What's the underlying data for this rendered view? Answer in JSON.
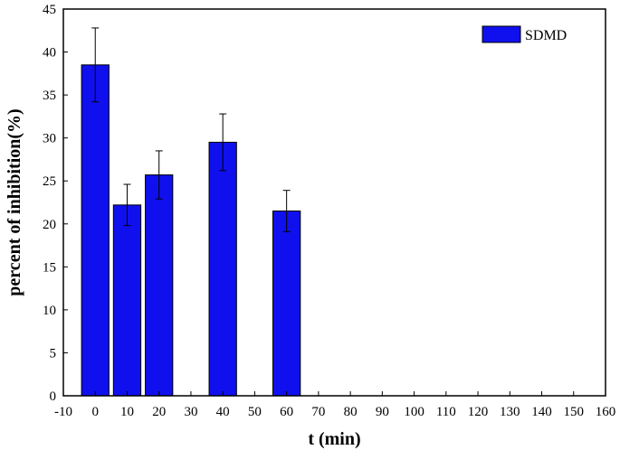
{
  "chart_data": {
    "type": "bar",
    "xlabel": "t (min)",
    "ylabel": "percent of inhibition(%)",
    "xlim": [
      -10,
      160
    ],
    "ylim": [
      0,
      45
    ],
    "xticks": [
      "-10",
      "0",
      "10",
      "20",
      "30",
      "40",
      "50",
      "60",
      "70",
      "80",
      "90",
      "100",
      "110",
      "120",
      "130",
      "140",
      "150",
      "160"
    ],
    "yticks": [
      "0",
      "5",
      "10",
      "15",
      "20",
      "25",
      "30",
      "35",
      "40",
      "45"
    ],
    "x": [
      0,
      10,
      20,
      40,
      60
    ],
    "series": [
      {
        "name": "SDMD",
        "color": "#1010ee",
        "values": [
          38.5,
          22.2,
          25.7,
          29.5,
          21.5
        ],
        "error": [
          4.3,
          2.4,
          2.8,
          3.3,
          2.4
        ]
      }
    ],
    "grid": false,
    "legend_position": "top-right"
  }
}
